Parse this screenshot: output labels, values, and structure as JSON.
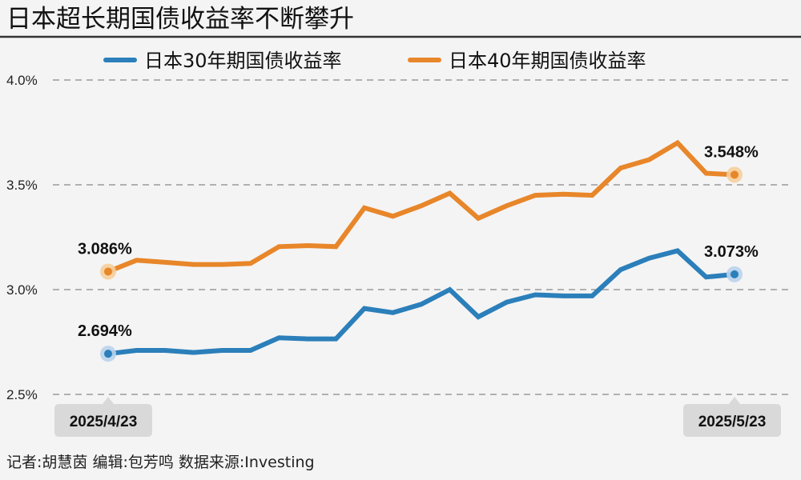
{
  "title": "日本超长期国债收益率不断攀升",
  "footer": "记者:胡慧茵  编辑:包芳鸣  数据来源:Investing",
  "chart_data": {
    "type": "line",
    "title": "日本超长期国债收益率不断攀升",
    "ylim": [
      2.5,
      4.0
    ],
    "yticks": [
      2.5,
      3.0,
      3.5,
      4.0
    ],
    "ytick_labels": [
      "2.5%",
      "3.0%",
      "3.5%",
      "4.0%"
    ],
    "grid": true,
    "grid_style": "dashed horizontal",
    "legend_placement": "top",
    "x_start_label": "2025/4/23",
    "x_end_label": "2025/5/23",
    "series": [
      {
        "name": "日本30年期国债收益率",
        "color": "#2b7fba",
        "halo": "#b9d3ec",
        "values": [
          2.694,
          2.71,
          2.71,
          2.7,
          2.71,
          2.71,
          2.77,
          2.765,
          2.765,
          2.91,
          2.89,
          2.93,
          3.0,
          2.87,
          2.94,
          2.975,
          2.97,
          2.97,
          3.095,
          3.15,
          3.185,
          3.06,
          3.073
        ],
        "start_label": "2.694%",
        "end_label": "3.073%"
      },
      {
        "name": "日本40年期国债收益率",
        "color": "#e8862a",
        "halo": "#f6cf9c",
        "values": [
          3.086,
          3.14,
          3.13,
          3.12,
          3.12,
          3.125,
          3.205,
          3.21,
          3.205,
          3.39,
          3.35,
          3.4,
          3.46,
          3.34,
          3.4,
          3.45,
          3.455,
          3.45,
          3.58,
          3.62,
          3.7,
          3.555,
          3.548
        ],
        "start_label": "3.086%",
        "end_label": "3.548%"
      }
    ]
  }
}
